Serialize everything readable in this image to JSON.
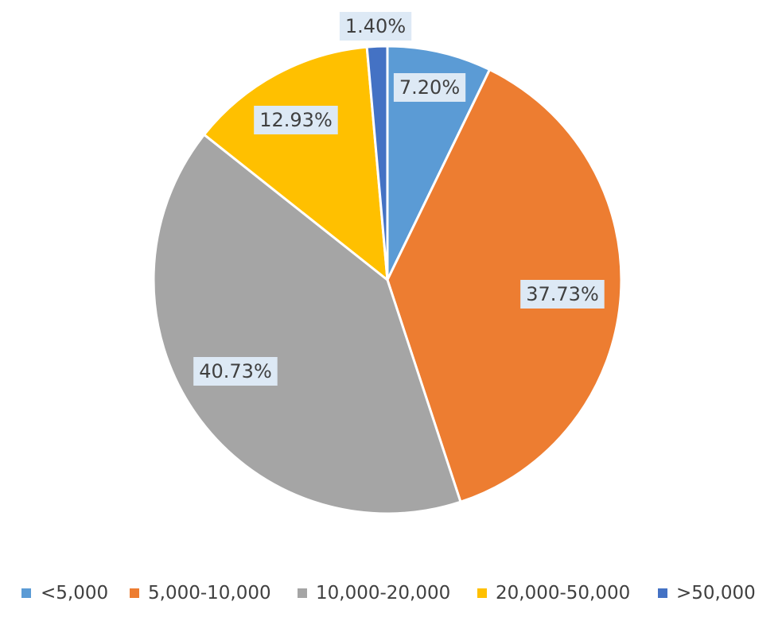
{
  "chart_data": {
    "type": "pie",
    "categories": [
      "<5,000",
      "5,000-10,000",
      "10,000-20,000",
      "20,000-50,000",
      ">50,000"
    ],
    "values": [
      7.2,
      37.73,
      40.73,
      12.93,
      1.4
    ],
    "data_labels": [
      "7.20%",
      "37.73%",
      "40.73%",
      "12.93%",
      "1.40%"
    ],
    "colors": [
      "#5b9bd5",
      "#ed7d31",
      "#a5a5a5",
      "#ffc000",
      "#4472c4"
    ],
    "start_angle": "12 o'clock",
    "direction": "clockwise",
    "legend": "bottom"
  }
}
